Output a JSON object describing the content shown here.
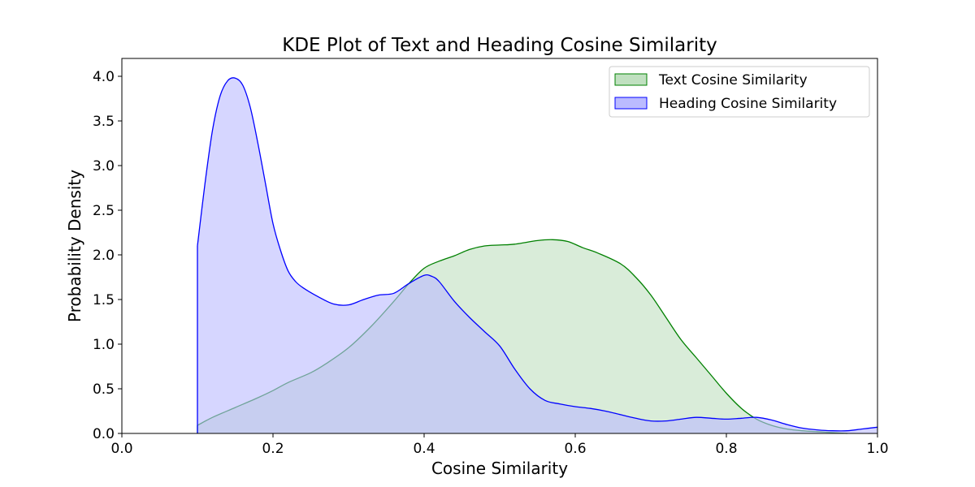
{
  "chart_data": {
    "type": "area",
    "title": "KDE Plot of Text and Heading Cosine Similarity",
    "xlabel": "Cosine Similarity",
    "ylabel": "Probability Density",
    "xlim": [
      0.0,
      1.0
    ],
    "ylim": [
      0.0,
      4.2
    ],
    "x_ticks": [
      "0.0",
      "0.2",
      "0.4",
      "0.6",
      "0.8",
      "1.0"
    ],
    "y_ticks": [
      "0.0",
      "0.5",
      "1.0",
      "1.5",
      "2.0",
      "2.5",
      "3.0",
      "3.5",
      "4.0"
    ],
    "grid": false,
    "legend_position": "top-right",
    "series": [
      {
        "name": "Text Cosine Similarity",
        "line_color": "#008000",
        "fill_color": "#c0e0c0",
        "x": [
          0.1,
          0.12,
          0.15,
          0.18,
          0.2,
          0.22,
          0.25,
          0.27,
          0.3,
          0.33,
          0.36,
          0.38,
          0.4,
          0.42,
          0.44,
          0.46,
          0.48,
          0.5,
          0.52,
          0.55,
          0.57,
          0.59,
          0.61,
          0.63,
          0.66,
          0.68,
          0.7,
          0.72,
          0.74,
          0.76,
          0.78,
          0.8,
          0.82,
          0.84,
          0.86,
          0.88,
          0.9,
          0.92,
          0.94,
          0.96
        ],
        "y": [
          0.09,
          0.18,
          0.29,
          0.4,
          0.48,
          0.57,
          0.68,
          0.78,
          0.96,
          1.2,
          1.48,
          1.68,
          1.85,
          1.93,
          1.99,
          2.06,
          2.1,
          2.11,
          2.12,
          2.16,
          2.17,
          2.15,
          2.08,
          2.02,
          1.9,
          1.75,
          1.55,
          1.3,
          1.05,
          0.85,
          0.65,
          0.45,
          0.28,
          0.16,
          0.09,
          0.05,
          0.03,
          0.02,
          0.01,
          0.0
        ]
      },
      {
        "name": "Heading Cosine Similarity",
        "line_color": "#0000ff",
        "fill_color": "#bbbbff",
        "x": [
          0.1,
          0.11,
          0.12,
          0.13,
          0.14,
          0.15,
          0.16,
          0.17,
          0.18,
          0.19,
          0.2,
          0.21,
          0.22,
          0.23,
          0.24,
          0.26,
          0.28,
          0.3,
          0.32,
          0.34,
          0.36,
          0.38,
          0.4,
          0.41,
          0.42,
          0.44,
          0.46,
          0.48,
          0.5,
          0.52,
          0.54,
          0.56,
          0.58,
          0.6,
          0.62,
          0.64,
          0.66,
          0.68,
          0.7,
          0.72,
          0.74,
          0.76,
          0.78,
          0.8,
          0.82,
          0.84,
          0.86,
          0.88,
          0.9,
          0.92,
          0.94,
          0.96,
          0.98,
          1.0
        ],
        "y": [
          2.1,
          2.8,
          3.4,
          3.78,
          3.95,
          3.98,
          3.9,
          3.65,
          3.25,
          2.8,
          2.35,
          2.05,
          1.82,
          1.7,
          1.63,
          1.53,
          1.45,
          1.44,
          1.5,
          1.55,
          1.57,
          1.68,
          1.77,
          1.76,
          1.7,
          1.48,
          1.3,
          1.14,
          0.98,
          0.72,
          0.5,
          0.37,
          0.33,
          0.3,
          0.28,
          0.25,
          0.21,
          0.17,
          0.14,
          0.14,
          0.16,
          0.18,
          0.17,
          0.16,
          0.17,
          0.18,
          0.15,
          0.1,
          0.06,
          0.04,
          0.03,
          0.03,
          0.05,
          0.07
        ]
      }
    ]
  }
}
